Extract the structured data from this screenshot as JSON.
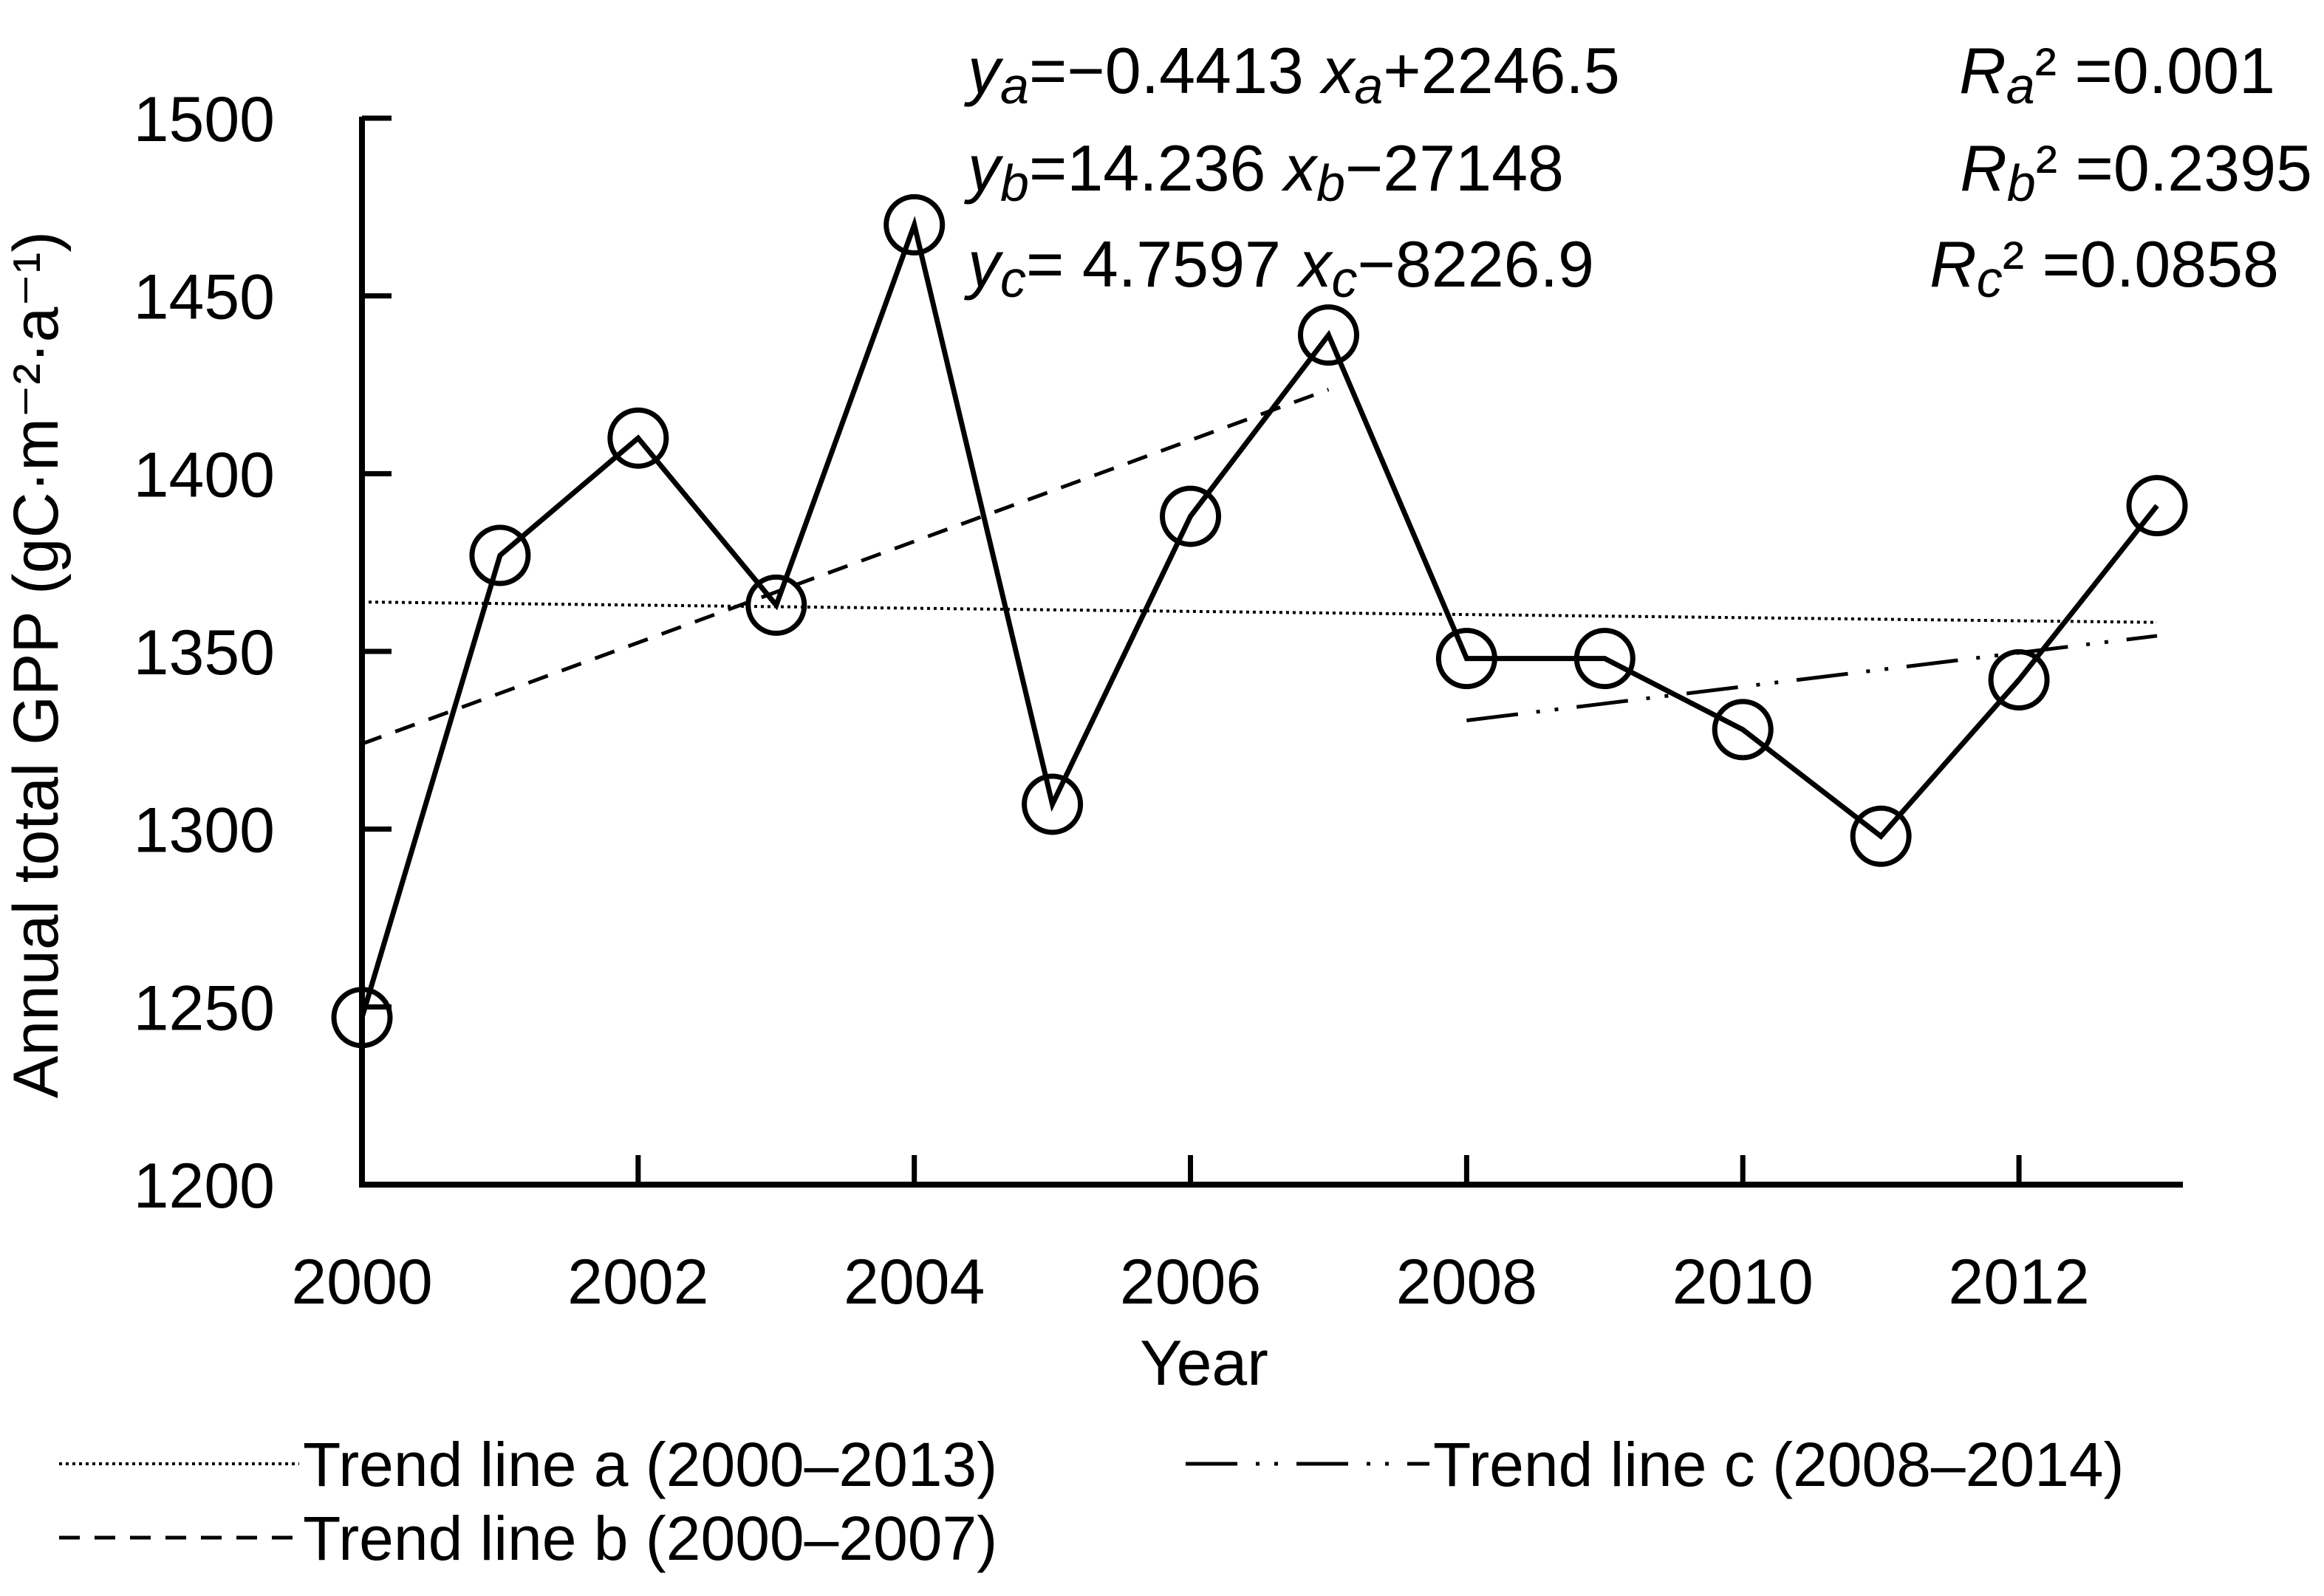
{
  "chart_data": {
    "type": "line",
    "xlabel": "Year",
    "ylabel": "Annual total GPP (gC·m⁻²·a⁻¹)",
    "xlim": [
      2000,
      2013
    ],
    "ylim": [
      1200,
      1500
    ],
    "x_ticks": [
      2000,
      2002,
      2004,
      2006,
      2008,
      2010,
      2012
    ],
    "x_tick_labels": [
      "2000",
      "2002",
      "2004",
      "2006",
      "2008",
      "2010",
      "2012"
    ],
    "y_ticks": [
      1200,
      1250,
      1300,
      1350,
      1400,
      1450,
      1500
    ],
    "y_tick_labels": [
      "1200",
      "1250",
      "1300",
      "1350",
      "1400",
      "1450",
      "1500"
    ],
    "grid": false,
    "legend_position": "bottom",
    "series": [
      {
        "x": [
          2000,
          2001,
          2002,
          2003,
          2004,
          2005,
          2006,
          2007,
          2008,
          2009,
          2010,
          2011,
          2012,
          2013
        ],
        "values": [
          1247,
          1377,
          1410,
          1363,
          1470,
          1307,
          1388,
          1439,
          1348,
          1348,
          1328,
          1298,
          1342,
          1391
        ],
        "marker": "open-circle",
        "color": "#000000"
      }
    ],
    "trend_lines": [
      {
        "name": "Trend line a (2000–2013)",
        "style": "dotted",
        "x_range": [
          2000,
          2013
        ],
        "slope": -0.4413,
        "intercept": 2246.5
      },
      {
        "name": "Trend line b (2000–2007)",
        "style": "dashed",
        "x_range": [
          2000,
          2007
        ],
        "slope": 14.236,
        "intercept": -27148
      },
      {
        "name": "Trend line c (2008–2014)",
        "style": "dash-dot-dot",
        "x_range": [
          2008,
          2013
        ],
        "slope": 4.7597,
        "intercept": -8226.9
      }
    ],
    "annotations": {
      "eq_a": {
        "y": "y",
        "sub": "a",
        "rest": "=−0.4413 ",
        "x": "x",
        "tail": "+2246.5"
      },
      "eq_b": {
        "y": "y",
        "sub": "b",
        "rest": "=14.236 ",
        "x": "x",
        "tail": "−27148"
      },
      "eq_c": {
        "y": "y",
        "sub": "c",
        "rest": "= 4.7597 ",
        "x": "x",
        "tail": "−8226.9"
      },
      "r2_a": {
        "r": "R",
        "sub": "a",
        "tail": "² =0.001"
      },
      "r2_b": {
        "r": "R",
        "sub": "b",
        "tail": "² =0.2395"
      },
      "r2_c": {
        "r": "R",
        "sub": "c",
        "tail": "² =0.0858"
      }
    }
  }
}
